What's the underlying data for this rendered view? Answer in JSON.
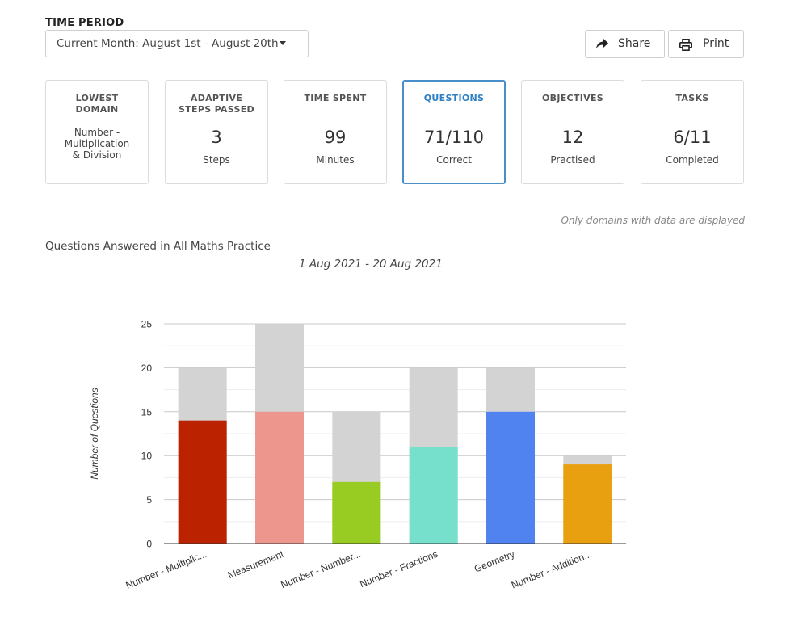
{
  "time_period": {
    "label": "TIME PERIOD",
    "selected": "Current Month: August 1st - August 20th"
  },
  "actions": {
    "share_label": "Share",
    "print_label": "Print"
  },
  "cards": {
    "lowest_domain": {
      "title_line1": "LOWEST",
      "title_line2": "DOMAIN",
      "value_line1": "Number -",
      "value_line2": "Multiplication",
      "value_line3": "& Division"
    },
    "adaptive": {
      "title_line1": "ADAPTIVE",
      "title_line2": "STEPS PASSED",
      "value": "3",
      "sub": "Steps"
    },
    "time_spent": {
      "title": "TIME SPENT",
      "value": "99",
      "sub": "Minutes"
    },
    "questions": {
      "title": "QUESTIONS",
      "value": "71/110",
      "sub": "Correct"
    },
    "objectives": {
      "title": "OBJECTIVES",
      "value": "12",
      "sub": "Practised"
    },
    "tasks": {
      "title": "TASKS",
      "value": "6/11",
      "sub": "Completed"
    }
  },
  "note": "Only domains with data are displayed",
  "chart_heading": "Questions Answered in All Maths Practice",
  "colors": {
    "accent": "#4a8fc9",
    "total_bar": "#d3d3d3"
  },
  "chart_data": {
    "type": "bar",
    "title": "1 Aug 2021 - 20 Aug 2021",
    "xlabel": "",
    "ylabel": "Number of Questions",
    "ylim": [
      0,
      25
    ],
    "yticks": [
      0,
      5,
      10,
      15,
      20,
      25
    ],
    "grid": true,
    "categories": [
      "Number - Multiplic...",
      "Measurement",
      "Number - Number...",
      "Number - Fractions",
      "Geometry",
      "Number - Addition..."
    ],
    "series": [
      {
        "values": [
          14,
          15,
          7,
          11,
          15,
          9
        ],
        "colors": [
          "#bb2200",
          "#ec968e",
          "#99cc22",
          "#77e0cc",
          "#5082f0",
          "#e8a010"
        ]
      },
      {
        "values": [
          20,
          25,
          15,
          20,
          20,
          10
        ]
      }
    ]
  }
}
